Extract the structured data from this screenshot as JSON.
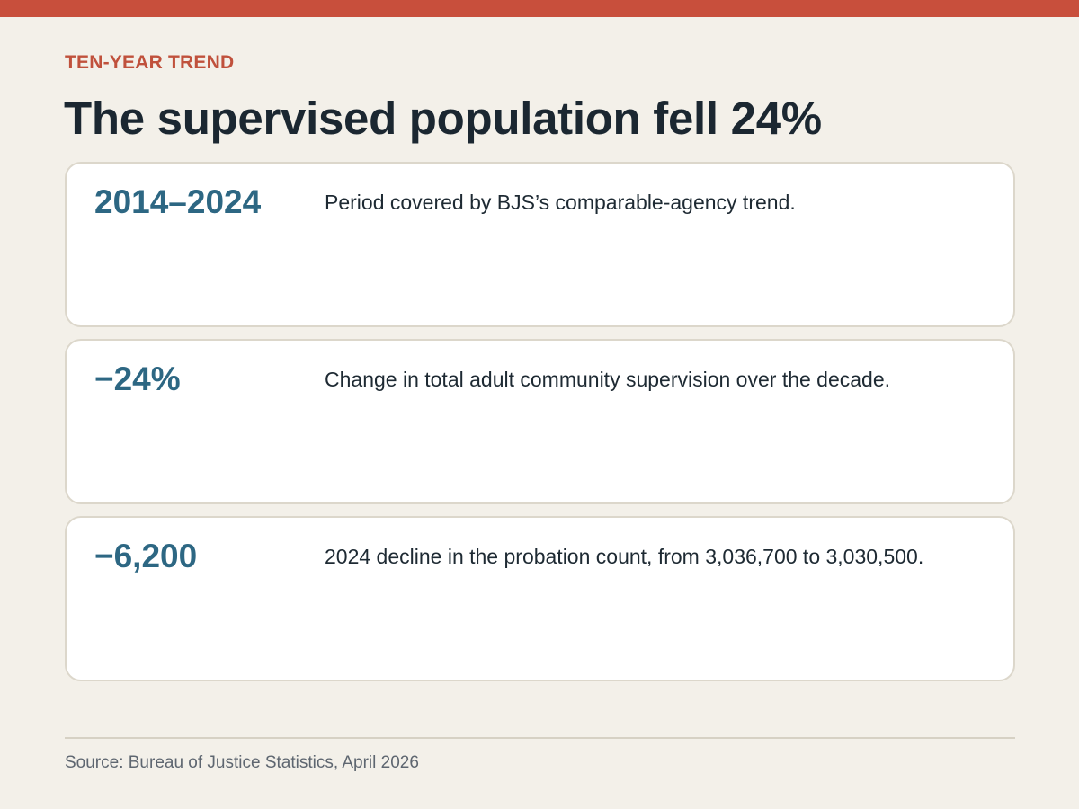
{
  "kicker": "TEN-YEAR TREND",
  "headline": "The supervised population fell 24%",
  "cards": [
    {
      "value": "2014–2024",
      "description": "Period covered by BJS’s comparable-agency trend."
    },
    {
      "value": "−24%",
      "description": "Change in total adult community supervision over the decade."
    },
    {
      "value": "−6,200",
      "description": "2024 decline in the probation count, from 3,036,700 to 3,030,500."
    }
  ],
  "source": "Source: Bureau of Justice Statistics, April 2026",
  "colors": {
    "accent": "#c84f3c",
    "value": "#2d6783",
    "background": "#f3f0e9"
  }
}
